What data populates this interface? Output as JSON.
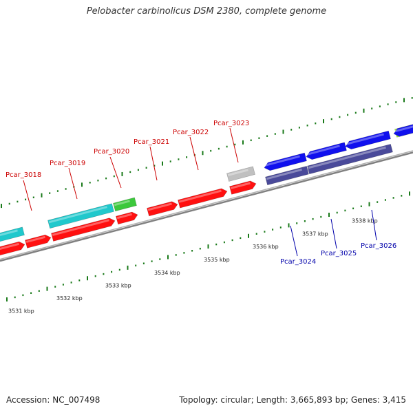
{
  "title": "Pelobacter carbinolicus DSM 2380, complete genome",
  "footer": {
    "accession": "Accession: NC_007498",
    "summary": "Topology: circular; Length: 3,665,893 bp; Genes: 3,415"
  },
  "colors": {
    "forward_cds": "#ff1010",
    "reverse_cds": "#1010ee",
    "reverse_cog": "#4a4a9a",
    "cog_cyan": "#20c8cc",
    "cog_green": "#3cc83c",
    "cog_lime": "#a0f030",
    "cog_grey": "#c0c0c0",
    "backbone": "#808080",
    "gc_ticks": "#1a7a1a",
    "fwd_label": "#cc0000",
    "rev_label": "#0000aa"
  },
  "scale": {
    "unit": "kbp",
    "tick_labels": [
      "3531 kbp",
      "3532 kbp",
      "3533 kbp",
      "3534 kbp",
      "3535 kbp",
      "3536 kbp",
      "3537 kbp",
      "3538 kbp"
    ]
  },
  "genes": [
    {
      "label": "Pcar_3018",
      "strand": "+"
    },
    {
      "label": "Pcar_3019",
      "strand": "+"
    },
    {
      "label": "Pcar_3020",
      "strand": "+"
    },
    {
      "label": "Pcar_3021",
      "strand": "+"
    },
    {
      "label": "Pcar_3022",
      "strand": "+"
    },
    {
      "label": "Pcar_3023",
      "strand": "+"
    },
    {
      "label": "Pcar_3024",
      "strand": "-"
    },
    {
      "label": "Pcar_3025",
      "strand": "-"
    },
    {
      "label": "Pcar_3026",
      "strand": "-"
    }
  ]
}
